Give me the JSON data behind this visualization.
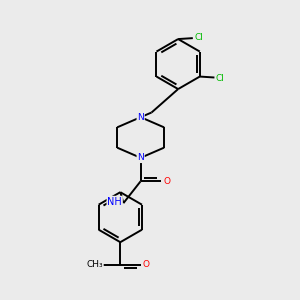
{
  "background_color": "#ebebeb",
  "bond_color": "#000000",
  "bond_width": 1.4,
  "atom_colors": {
    "N": "#0000ff",
    "O": "#ff0000",
    "Cl": "#00bb00",
    "C": "#000000",
    "H": "#555555"
  },
  "font_size": 6.5,
  "fig_size": [
    3.0,
    3.0
  ],
  "dpi": 100,
  "xlim": [
    0.5,
    8.5
  ],
  "ylim": [
    0.2,
    9.8
  ]
}
